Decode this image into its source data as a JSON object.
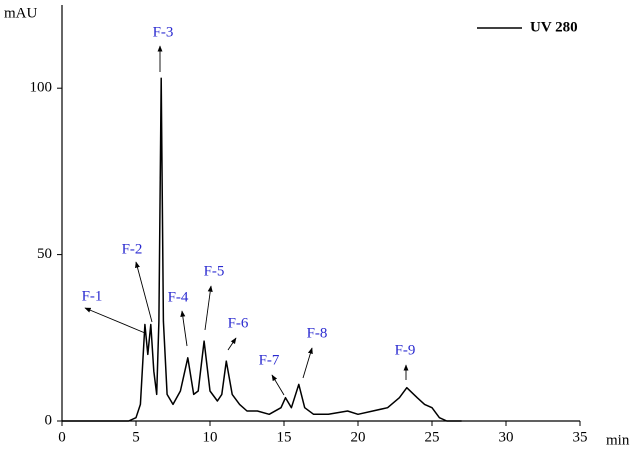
{
  "chart_data": {
    "type": "line",
    "y_label": "mAU",
    "x_label": "min",
    "x": [
      0,
      4.5,
      5,
      5.3,
      5.6,
      5.8,
      6.0,
      6.2,
      6.4,
      6.55,
      6.7,
      6.85,
      7.1,
      7.5,
      8.0,
      8.5,
      8.9,
      9.2,
      9.6,
      10.0,
      10.5,
      10.8,
      11.1,
      11.5,
      12,
      12.5,
      13.2,
      14,
      14.8,
      15.1,
      15.5,
      16,
      16.4,
      17,
      18,
      19.3,
      20,
      21,
      22,
      22.8,
      23.3,
      24,
      24.5,
      25,
      25.5,
      26,
      27
    ],
    "series": [
      {
        "name": "UV 280",
        "color": "#000000",
        "values": [
          0,
          0,
          1,
          5,
          29,
          20,
          29,
          15,
          8,
          30,
          103,
          30,
          8,
          5,
          9,
          19,
          8,
          9,
          24,
          9,
          6,
          8,
          18,
          8,
          5,
          3,
          3,
          2,
          4,
          7,
          4,
          11,
          4,
          2,
          2,
          3,
          2,
          3,
          4,
          7,
          10,
          7,
          5,
          4,
          1,
          0,
          0
        ]
      }
    ],
    "xlim": [
      0,
      35
    ],
    "xticks": [
      0,
      5,
      10,
      15,
      20,
      25,
      30,
      35
    ],
    "ylim": [
      0,
      125
    ],
    "yticks": [
      0,
      50,
      100
    ],
    "annotations": [
      "F-1",
      "F-2",
      "F-3",
      "F-4",
      "F-5",
      "F-6",
      "F-7",
      "F-8",
      "F-9"
    ],
    "legend": "top-right"
  }
}
